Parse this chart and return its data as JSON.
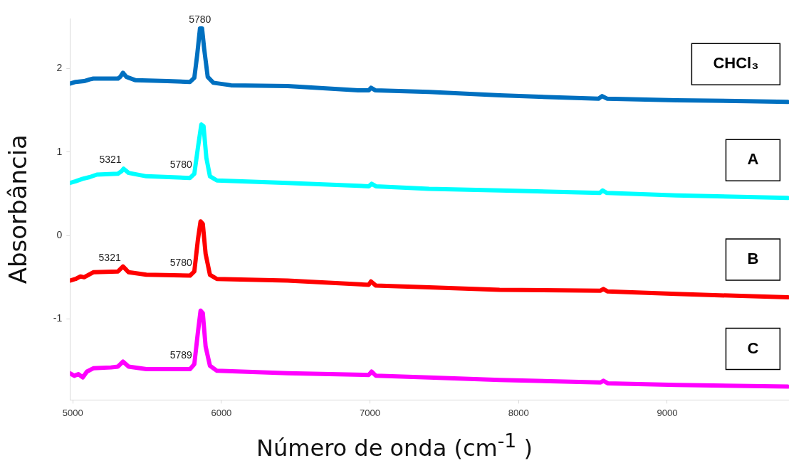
{
  "chart_data": {
    "type": "line",
    "xlabel": "Número de onda (cm$^{-1}$ )",
    "ylabel": "Absorbância",
    "xlim": [
      4981,
      9820
    ],
    "ylim": [
      -1.97,
      2.6
    ],
    "xticks": [
      5000,
      6000,
      7000,
      8000,
      9000
    ],
    "yticks": [
      -1,
      0,
      1,
      2
    ],
    "grid": false,
    "legend": false,
    "marker": "none",
    "line_style": "solid",
    "series": [
      {
        "name": "CHCl₃",
        "color": "#0070c0",
        "x": [
          4981,
          5019,
          5076,
          5114,
          5138,
          5304,
          5319,
          5338,
          5361,
          5423,
          5637,
          5789,
          5818,
          5837,
          5856,
          5870,
          5884,
          5908,
          5946,
          6065,
          6446,
          6921,
          6992,
          7007,
          7035,
          7397,
          7872,
          8348,
          8538,
          8562,
          8595,
          9061,
          9536,
          9812
        ],
        "values": [
          1.82,
          1.84,
          1.85,
          1.87,
          1.88,
          1.88,
          1.9,
          1.95,
          1.9,
          1.86,
          1.85,
          1.84,
          1.89,
          2.16,
          2.48,
          2.48,
          2.24,
          1.9,
          1.83,
          1.8,
          1.79,
          1.74,
          1.74,
          1.77,
          1.74,
          1.72,
          1.68,
          1.65,
          1.64,
          1.67,
          1.64,
          1.62,
          1.61,
          1.6
        ]
      },
      {
        "name": "A",
        "color": "#00ffff",
        "x": [
          4981,
          5019,
          5067,
          5114,
          5162,
          5304,
          5328,
          5342,
          5376,
          5495,
          5789,
          5818,
          5842,
          5865,
          5880,
          5899,
          5923,
          5970,
          6446,
          6992,
          7011,
          7040,
          7397,
          7872,
          8547,
          8566,
          8595,
          9061,
          9812
        ],
        "values": [
          0.63,
          0.65,
          0.68,
          0.7,
          0.73,
          0.74,
          0.77,
          0.8,
          0.75,
          0.71,
          0.69,
          0.74,
          1.05,
          1.33,
          1.31,
          0.93,
          0.71,
          0.66,
          0.63,
          0.59,
          0.62,
          0.59,
          0.56,
          0.54,
          0.51,
          0.54,
          0.51,
          0.48,
          0.45
        ]
      },
      {
        "name": "B",
        "color": "#ff0000",
        "x": [
          4981,
          5019,
          5052,
          5076,
          5138,
          5304,
          5338,
          5376,
          5495,
          5789,
          5818,
          5842,
          5860,
          5875,
          5894,
          5923,
          5970,
          6446,
          6992,
          7007,
          7040,
          7397,
          7872,
          8552,
          8571,
          8600,
          9061,
          9812
        ],
        "values": [
          -0.54,
          -0.52,
          -0.49,
          -0.5,
          -0.44,
          -0.43,
          -0.37,
          -0.44,
          -0.47,
          -0.48,
          -0.43,
          -0.05,
          0.17,
          0.14,
          -0.22,
          -0.47,
          -0.52,
          -0.54,
          -0.59,
          -0.55,
          -0.6,
          -0.62,
          -0.65,
          -0.66,
          -0.64,
          -0.67,
          -0.7,
          -0.74
        ]
      },
      {
        "name": "C",
        "color": "#ff00ff",
        "x": [
          4981,
          5010,
          5038,
          5067,
          5095,
          5138,
          5257,
          5304,
          5338,
          5376,
          5495,
          5789,
          5818,
          5842,
          5860,
          5875,
          5894,
          5923,
          5970,
          6446,
          6992,
          7011,
          7040,
          7397,
          7872,
          8552,
          8571,
          8600,
          9061,
          9812
        ],
        "values": [
          -1.65,
          -1.68,
          -1.66,
          -1.7,
          -1.63,
          -1.59,
          -1.58,
          -1.57,
          -1.51,
          -1.57,
          -1.6,
          -1.6,
          -1.54,
          -1.16,
          -0.9,
          -0.93,
          -1.33,
          -1.56,
          -1.62,
          -1.65,
          -1.67,
          -1.63,
          -1.68,
          -1.7,
          -1.73,
          -1.76,
          -1.74,
          -1.77,
          -1.79,
          -1.81
        ]
      }
    ],
    "annotations": [
      {
        "text": "5780",
        "x": 5856,
        "y": 2.48
      },
      {
        "text": "5321",
        "x": 5342,
        "y": 0.8
      },
      {
        "text": "5780",
        "x": 5818,
        "y": 0.74
      },
      {
        "text": "5321",
        "x": 5338,
        "y": -0.37
      },
      {
        "text": "5780",
        "x": 5818,
        "y": -0.43
      },
      {
        "text": "5789",
        "x": 5818,
        "y": -1.54
      }
    ]
  }
}
